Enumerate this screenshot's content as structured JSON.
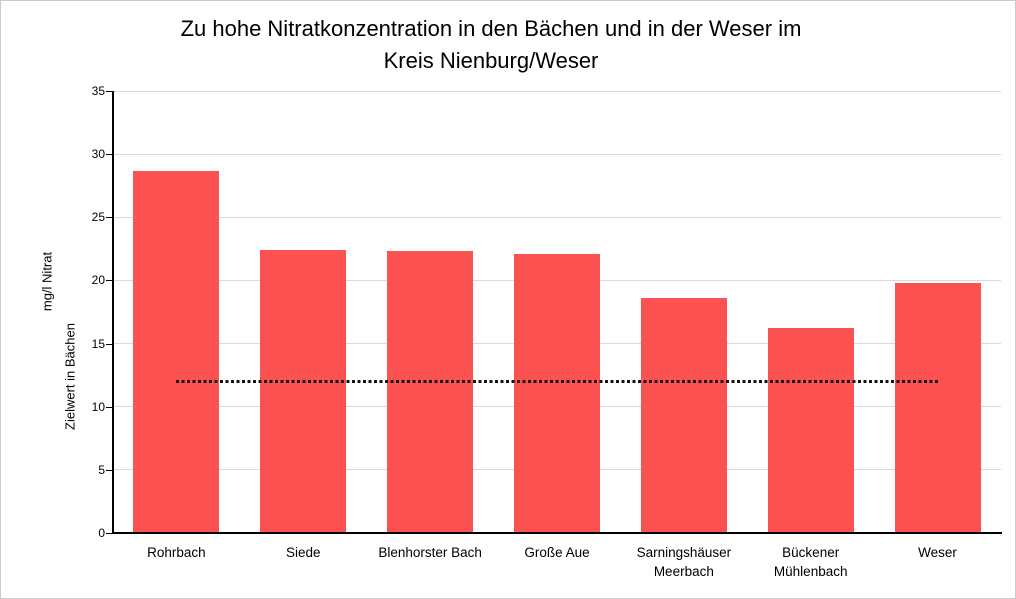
{
  "header": {
    "title_line1": "Zu hohe Nitratkonzentration in den Bächen und in der Weser im",
    "title_line2": "Kreis Nienburg/Weser"
  },
  "chart_data": {
    "type": "bar",
    "title": "Zu hohe Nitratkonzentration in den Bächen und in der Weser im Kreis Nienburg/Weser",
    "categories": [
      "Rohrbach",
      "Siede",
      "Blenhorster Bach",
      "Große Aue",
      "Sarningshäuser Meerbach",
      "Bückener Mühlenbach",
      "Weser"
    ],
    "values": [
      28.7,
      22.4,
      22.3,
      22.1,
      18.6,
      16.2,
      19.8
    ],
    "ylabel": "mg/l Nitrat",
    "ylabel2": "Zielwert in Bächen",
    "ylim": [
      0,
      35
    ],
    "yticks": [
      0,
      5,
      10,
      15,
      20,
      25,
      30,
      35
    ],
    "grid": true,
    "legend": false,
    "target_line": {
      "value": 12,
      "meaning": "Zielwert in Bächen",
      "style": "dotted",
      "span": "first category center to last category center"
    },
    "colors": {
      "bar": "#fc5151",
      "gridline": "#d9d9d9",
      "axis": "#000000",
      "target_line": "#111111",
      "text": "#000000",
      "frame_border": "#cccccc"
    }
  }
}
